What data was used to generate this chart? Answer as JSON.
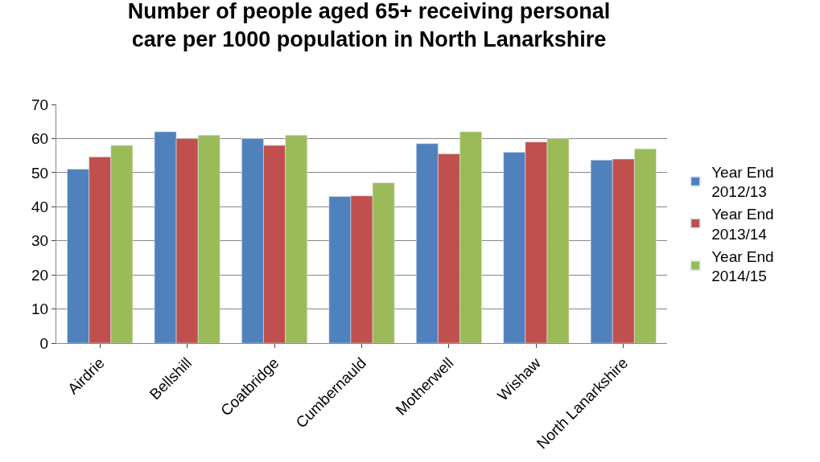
{
  "chart_data": {
    "type": "bar",
    "title": "Number of people aged 65+ receiving personal care per 1000 population in North Lanarkshire",
    "categories": [
      "Airdrie",
      "Bellshill",
      "Coatbridge",
      "Cumbernauld",
      "Motherwell",
      "Wishaw",
      "North Lanarkshire"
    ],
    "series": [
      {
        "name": "Year End 2012/13",
        "color": "#4f81bd",
        "values": [
          51,
          62,
          60,
          43,
          58.5,
          56,
          53.7
        ]
      },
      {
        "name": "Year End 2013/14",
        "color": "#c0504d",
        "values": [
          54.6,
          60,
          58,
          43.2,
          55.5,
          59,
          54
        ]
      },
      {
        "name": "Year End 2014/15",
        "color": "#9bbb59",
        "values": [
          58,
          61,
          61,
          47,
          62,
          60,
          57
        ]
      }
    ],
    "ylim": [
      0,
      70
    ],
    "yticks": [
      0,
      10,
      20,
      30,
      40,
      50,
      60,
      70
    ],
    "grid": "y",
    "legend": "right"
  }
}
